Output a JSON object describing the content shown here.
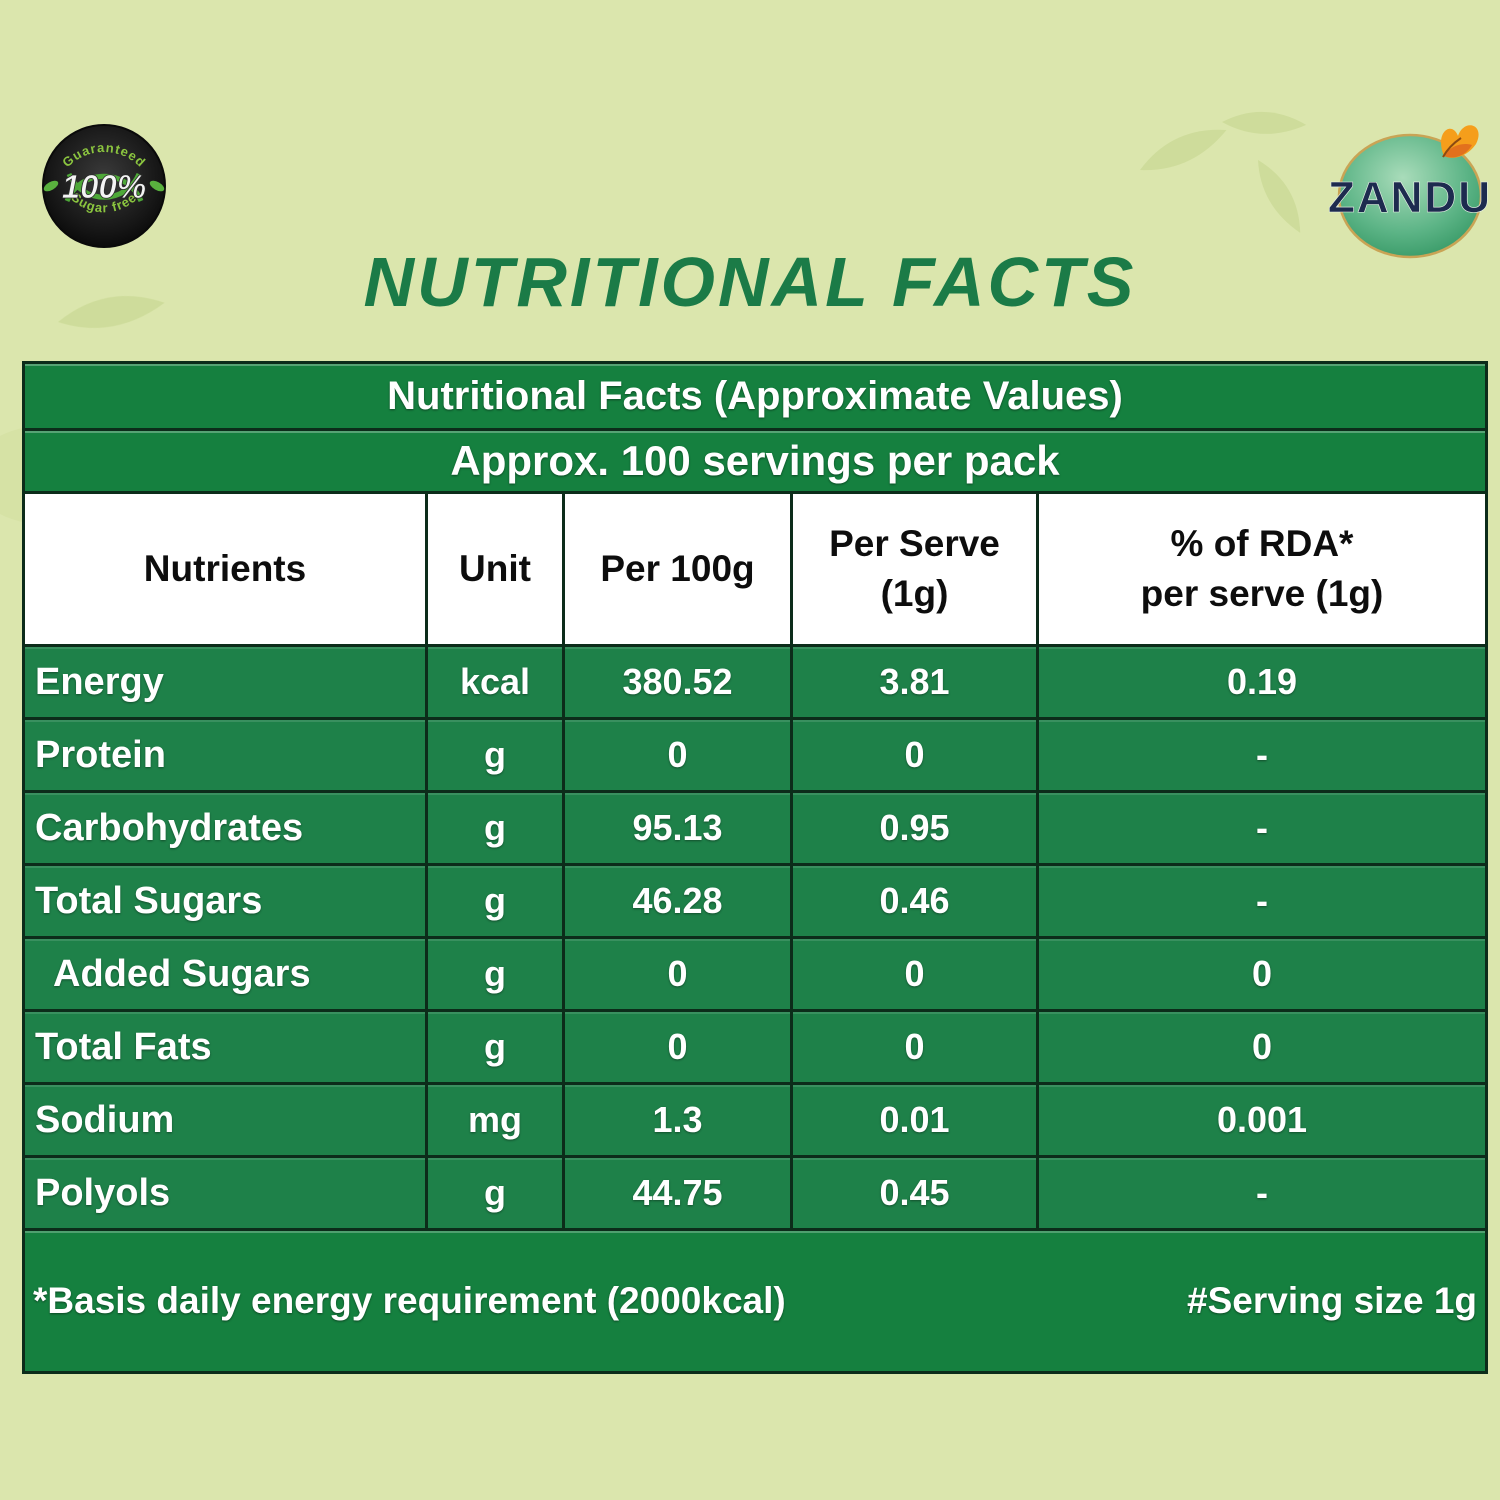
{
  "title": "NUTRITIONAL FACTS",
  "badge": {
    "top_text": "Guaranteed",
    "center_text": "100%",
    "bottom_text": "Sugar free"
  },
  "logo": {
    "brand": "ZANDU"
  },
  "table": {
    "title": "Nutritional Facts (Approximate Values)",
    "subtitle": "Approx. 100 servings per pack",
    "columns": [
      {
        "line1": "Nutrients",
        "line2": ""
      },
      {
        "line1": "Unit",
        "line2": ""
      },
      {
        "line1": "Per 100g",
        "line2": ""
      },
      {
        "line1": "Per Serve",
        "line2": "(1g)"
      },
      {
        "line1": "% of RDA*",
        "line2": "per serve (1g)"
      }
    ],
    "rows": [
      {
        "nutrient": "Energy",
        "unit": "kcal",
        "per_100g": "380.52",
        "per_serve": "3.81",
        "rda": "0.19",
        "indent": false
      },
      {
        "nutrient": "Protein",
        "unit": "g",
        "per_100g": "0",
        "per_serve": "0",
        "rda": "-",
        "indent": false
      },
      {
        "nutrient": "Carbohydrates",
        "unit": "g",
        "per_100g": "95.13",
        "per_serve": "0.95",
        "rda": "-",
        "indent": false
      },
      {
        "nutrient": "Total Sugars",
        "unit": "g",
        "per_100g": "46.28",
        "per_serve": "0.46",
        "rda": "-",
        "indent": false
      },
      {
        "nutrient": "Added Sugars",
        "unit": "g",
        "per_100g": "0",
        "per_serve": "0",
        "rda": "0",
        "indent": true
      },
      {
        "nutrient": "Total Fats",
        "unit": "g",
        "per_100g": "0",
        "per_serve": "0",
        "rda": "0",
        "indent": false
      },
      {
        "nutrient": "Sodium",
        "unit": "mg",
        "per_100g": "1.3",
        "per_serve": "0.01",
        "rda": "0.001",
        "indent": false
      },
      {
        "nutrient": "Polyols",
        "unit": "g",
        "per_100g": "44.75",
        "per_serve": "0.45",
        "rda": "-",
        "indent": false
      }
    ],
    "footnote_left": "*Basis daily energy requirement (2000kcal)",
    "footnote_right": "#Serving size 1g"
  },
  "colors": {
    "background": "#dbe6ad",
    "band_green": "#15803f",
    "row_green": "#1e8149",
    "border_dark": "#0c2c1a",
    "header_bg": "#ffffff",
    "title_green": "#1b7b47",
    "brand_navy": "#1d2b4f",
    "butterfly_orange": "#f59e1b"
  }
}
